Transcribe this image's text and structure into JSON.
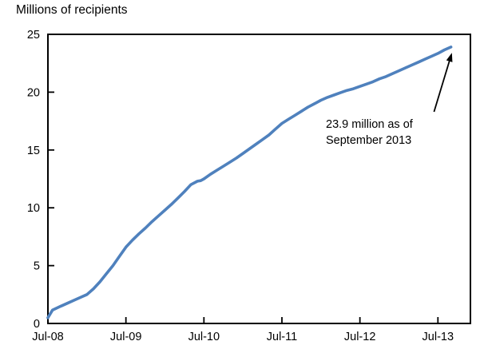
{
  "chart_data": {
    "type": "line",
    "title": "Millions of recipients",
    "xlabel": "",
    "ylabel": "Millions of recipients",
    "xlim_months_since_jul08": [
      0,
      65
    ],
    "ylim": [
      0,
      25
    ],
    "yticks": [
      0,
      5,
      10,
      15,
      20,
      25
    ],
    "xticks": [
      {
        "t": 0,
        "label": "Jul-08"
      },
      {
        "t": 12,
        "label": "Jul-09"
      },
      {
        "t": 24,
        "label": "Jul-10"
      },
      {
        "t": 36,
        "label": "Jul-11"
      },
      {
        "t": 48,
        "label": "Jul-12"
      },
      {
        "t": 60,
        "label": "Jul-13"
      }
    ],
    "grid": false,
    "legend": "none",
    "axis_color": "#000000",
    "series": [
      {
        "name": "recipients",
        "color": "#4F81BD",
        "x_unit": "months since Jul-08",
        "points": [
          [
            0,
            0.5
          ],
          [
            0.7,
            1.15
          ],
          [
            2,
            1.5
          ],
          [
            3,
            1.75
          ],
          [
            4,
            2.0
          ],
          [
            5,
            2.25
          ],
          [
            6,
            2.5
          ],
          [
            7,
            3.0
          ],
          [
            8,
            3.6
          ],
          [
            9,
            4.3
          ],
          [
            10,
            5.0
          ],
          [
            11,
            5.8
          ],
          [
            12,
            6.6
          ],
          [
            13,
            7.2
          ],
          [
            14,
            7.75
          ],
          [
            15,
            8.25
          ],
          [
            16,
            8.8
          ],
          [
            17,
            9.3
          ],
          [
            18,
            9.8
          ],
          [
            19,
            10.3
          ],
          [
            20,
            10.85
          ],
          [
            21,
            11.4
          ],
          [
            22,
            12.0
          ],
          [
            23,
            12.3
          ],
          [
            23.5,
            12.35
          ],
          [
            24,
            12.5
          ],
          [
            25,
            12.9
          ],
          [
            26,
            13.25
          ],
          [
            27,
            13.6
          ],
          [
            28,
            13.95
          ],
          [
            29,
            14.3
          ],
          [
            30,
            14.7
          ],
          [
            31,
            15.1
          ],
          [
            32,
            15.5
          ],
          [
            33,
            15.9
          ],
          [
            34,
            16.3
          ],
          [
            35,
            16.8
          ],
          [
            36,
            17.3
          ],
          [
            37,
            17.65
          ],
          [
            38,
            18.0
          ],
          [
            39,
            18.35
          ],
          [
            40,
            18.7
          ],
          [
            41,
            19.0
          ],
          [
            42,
            19.3
          ],
          [
            43,
            19.55
          ],
          [
            44,
            19.75
          ],
          [
            45,
            19.95
          ],
          [
            46,
            20.15
          ],
          [
            47,
            20.3
          ],
          [
            48,
            20.5
          ],
          [
            49,
            20.7
          ],
          [
            50,
            20.9
          ],
          [
            51,
            21.15
          ],
          [
            52,
            21.35
          ],
          [
            53,
            21.6
          ],
          [
            54,
            21.85
          ],
          [
            55,
            22.1
          ],
          [
            56,
            22.35
          ],
          [
            57,
            22.6
          ],
          [
            58,
            22.85
          ],
          [
            59,
            23.1
          ],
          [
            60,
            23.35
          ],
          [
            61,
            23.65
          ],
          [
            62,
            23.9
          ]
        ]
      }
    ],
    "annotation": {
      "line1": "23.9 million as of",
      "line2": "September 2013",
      "value": 23.9,
      "as_of": "September 2013",
      "arrow": {
        "from": [
          59.4,
          18.3
        ],
        "to": [
          62.15,
          23.4
        ]
      }
    }
  }
}
